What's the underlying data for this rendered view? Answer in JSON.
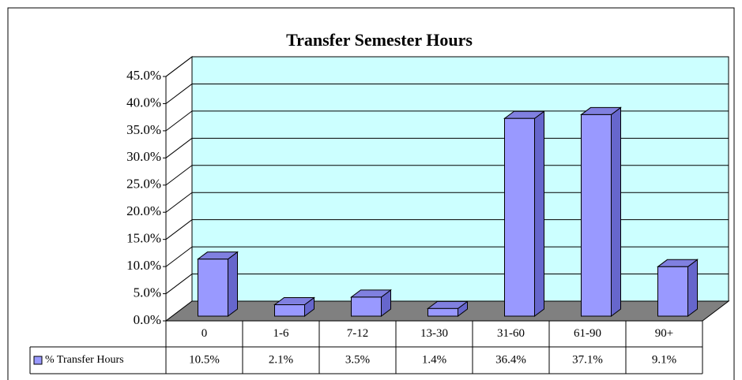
{
  "chart_data": {
    "type": "bar3d",
    "title": "Transfer Semester Hours",
    "categories": [
      "0",
      "1-6",
      "7-12",
      "13-30",
      "31-60",
      "61-90",
      "90+"
    ],
    "series": [
      {
        "name": "% Transfer Hours",
        "color": "#9999ff",
        "values": [
          10.5,
          2.1,
          3.5,
          1.4,
          36.4,
          37.1,
          9.1
        ],
        "value_labels": [
          "10.5%",
          "2.1%",
          "3.5%",
          "1.4%",
          "36.4%",
          "37.1%",
          "9.1%"
        ]
      }
    ],
    "ylim": [
      0,
      45
    ],
    "yticks": [
      {
        "value": 0,
        "label": "0.0%"
      },
      {
        "value": 5,
        "label": "5.0%"
      },
      {
        "value": 10,
        "label": "10.0%"
      },
      {
        "value": 15,
        "label": "15.0%"
      },
      {
        "value": 20,
        "label": "20.0%"
      },
      {
        "value": 25,
        "label": "25.0%"
      },
      {
        "value": 30,
        "label": "30.0%"
      },
      {
        "value": 35,
        "label": "35.0%"
      },
      {
        "value": 40,
        "label": "40.0%"
      },
      {
        "value": 45,
        "label": "45.0%"
      }
    ],
    "grid": true,
    "data_table": true
  }
}
